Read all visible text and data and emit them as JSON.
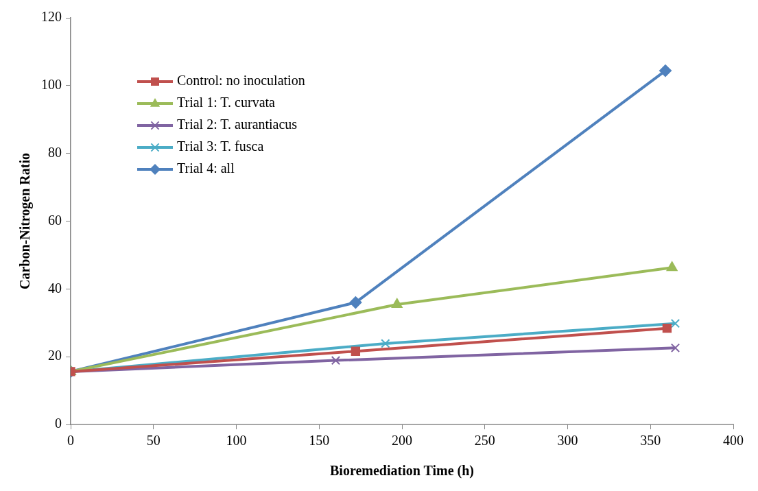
{
  "chart_data": {
    "type": "line",
    "xlabel": "Bioremediation Time (h)",
    "ylabel": "Carbon-Nitrogen Ratio",
    "xlim": [
      0,
      400
    ],
    "xticks": [
      0,
      50,
      100,
      150,
      200,
      250,
      300,
      350,
      400
    ],
    "ylim": [
      0,
      120
    ],
    "yticks": [
      0,
      20,
      40,
      60,
      80,
      100,
      120
    ],
    "grid": false,
    "legend": "top left",
    "line_style": "solid",
    "series": [
      {
        "name": "Control: no inoculation",
        "color": "#c0504d",
        "marker": "square",
        "x": [
          0,
          172,
          360
        ],
        "values": [
          15.6,
          21.6,
          28.4
        ]
      },
      {
        "name": "Trial 1: T. curvata",
        "color": "#9bbb59",
        "marker": "triangle",
        "x": [
          0,
          197,
          363
        ],
        "values": [
          15.6,
          35.4,
          46.3
        ]
      },
      {
        "name": "Trial 2: T. aurantiacus",
        "color": "#8064a2",
        "marker": "cross",
        "x": [
          0,
          160,
          365
        ],
        "values": [
          15.6,
          18.9,
          22.6
        ]
      },
      {
        "name": "Trial 3: T. fusca",
        "color": "#4bacc6",
        "marker": "cross",
        "x": [
          0,
          190,
          365
        ],
        "values": [
          15.6,
          23.9,
          29.8
        ]
      },
      {
        "name": "Trial 4: all",
        "color": "#4f81bd",
        "marker": "diamond",
        "x": [
          0,
          172,
          359
        ],
        "values": [
          15.6,
          36.0,
          104.4
        ]
      }
    ]
  }
}
